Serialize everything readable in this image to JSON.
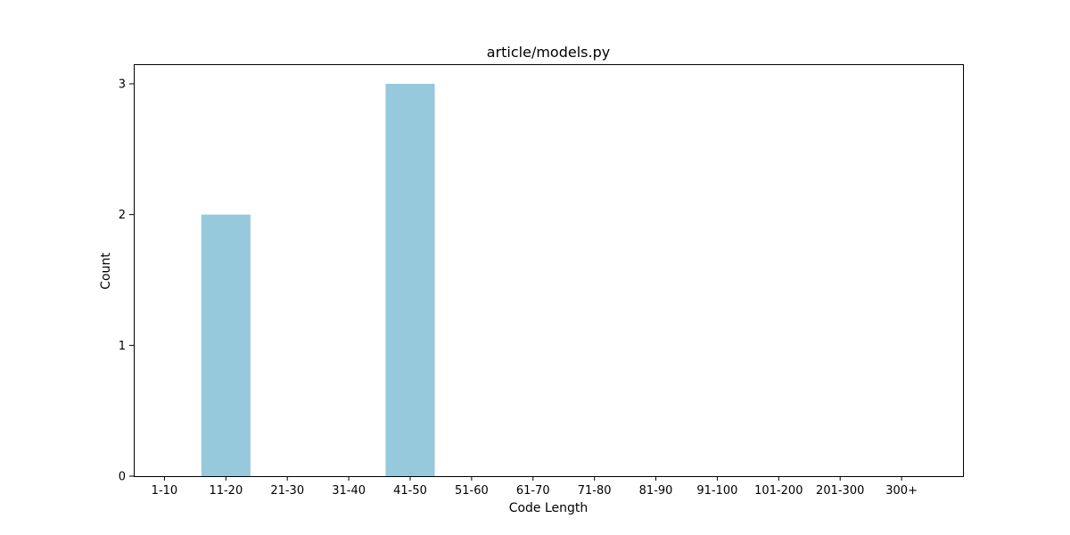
{
  "chart_data": {
    "type": "bar",
    "title": "article/models.py",
    "xlabel": "Code Length",
    "ylabel": "Count",
    "categories": [
      "1-10",
      "11-20",
      "21-30",
      "31-40",
      "41-50",
      "51-60",
      "61-70",
      "71-80",
      "81-90",
      "91-100",
      "101-200",
      "201-300",
      "300+"
    ],
    "values": [
      0,
      2,
      0,
      0,
      3,
      0,
      0,
      0,
      0,
      0,
      0,
      0,
      0
    ],
    "ylim": [
      0,
      3.15
    ],
    "yticks": [
      0,
      1,
      2,
      3
    ],
    "bar_color": "#96c9dc",
    "grid": false,
    "legend": "none"
  }
}
